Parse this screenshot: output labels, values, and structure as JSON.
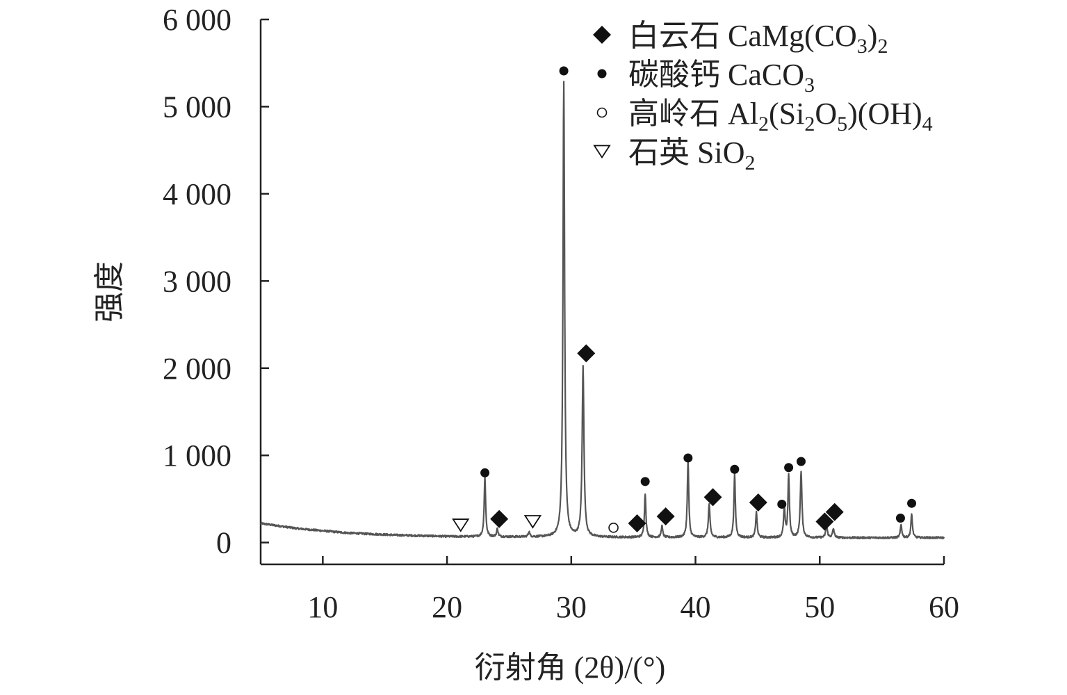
{
  "chart_data": {
    "type": "line",
    "xlabel": "衍射角 (2θ)/(°)",
    "ylabel": "强度",
    "xlim": [
      5,
      60
    ],
    "ylim": [
      -250,
      6000
    ],
    "x_ticks": [
      10,
      20,
      30,
      40,
      50,
      60
    ],
    "y_ticks": [
      0,
      1000,
      2000,
      3000,
      4000,
      5000,
      6000
    ],
    "x_tick_labels": [
      "10",
      "20",
      "30",
      "40",
      "50",
      "60"
    ],
    "y_tick_labels": [
      "0",
      "1 000",
      "2 000",
      "3 000",
      "4 000",
      "5 000",
      "6 000"
    ],
    "grid": false,
    "legend_position": "top-right",
    "line_color": "#555555",
    "background": {
      "points": [
        [
          5,
          220
        ],
        [
          8,
          160
        ],
        [
          12,
          110
        ],
        [
          16,
          85
        ],
        [
          20,
          70
        ],
        [
          25,
          65
        ],
        [
          30,
          62
        ],
        [
          40,
          58
        ],
        [
          50,
          55
        ],
        [
          55,
          55
        ],
        [
          60,
          55
        ]
      ]
    },
    "peaks": [
      {
        "x": 23.05,
        "height": 690,
        "width": 0.09
      },
      {
        "x": 24.05,
        "height": 90,
        "width": 0.09
      },
      {
        "x": 26.6,
        "height": 60,
        "width": 0.09
      },
      {
        "x": 29.4,
        "height": 5230,
        "width": 0.1
      },
      {
        "x": 30.95,
        "height": 1950,
        "width": 0.11
      },
      {
        "x": 35.95,
        "height": 500,
        "width": 0.09
      },
      {
        "x": 37.3,
        "height": 130,
        "width": 0.09
      },
      {
        "x": 39.4,
        "height": 870,
        "width": 0.09
      },
      {
        "x": 41.1,
        "height": 380,
        "width": 0.1
      },
      {
        "x": 43.15,
        "height": 720,
        "width": 0.09
      },
      {
        "x": 44.9,
        "height": 290,
        "width": 0.09
      },
      {
        "x": 47.15,
        "height": 340,
        "width": 0.09
      },
      {
        "x": 47.5,
        "height": 720,
        "width": 0.09
      },
      {
        "x": 48.5,
        "height": 760,
        "width": 0.1
      },
      {
        "x": 50.55,
        "height": 140,
        "width": 0.1
      },
      {
        "x": 51.1,
        "height": 100,
        "width": 0.1
      },
      {
        "x": 56.55,
        "height": 150,
        "width": 0.09
      },
      {
        "x": 57.4,
        "height": 270,
        "width": 0.09
      }
    ],
    "markers": [
      {
        "type": "diamond",
        "x": 31.2,
        "y": 2170
      },
      {
        "type": "diamond",
        "x": 24.2,
        "y": 270
      },
      {
        "type": "diamond",
        "x": 35.3,
        "y": 220
      },
      {
        "type": "diamond",
        "x": 37.6,
        "y": 300
      },
      {
        "type": "diamond",
        "x": 41.4,
        "y": 520
      },
      {
        "type": "diamond",
        "x": 45.05,
        "y": 460
      },
      {
        "type": "diamond",
        "x": 50.4,
        "y": 240
      },
      {
        "type": "diamond",
        "x": 51.2,
        "y": 350
      },
      {
        "type": "dot",
        "x": 29.4,
        "y": 5410
      },
      {
        "type": "dot",
        "x": 23.05,
        "y": 800
      },
      {
        "type": "dot",
        "x": 35.95,
        "y": 700
      },
      {
        "type": "dot",
        "x": 39.4,
        "y": 970
      },
      {
        "type": "dot",
        "x": 43.15,
        "y": 840
      },
      {
        "type": "dot",
        "x": 46.95,
        "y": 440
      },
      {
        "type": "dot",
        "x": 47.5,
        "y": 860
      },
      {
        "type": "dot",
        "x": 48.5,
        "y": 930
      },
      {
        "type": "dot",
        "x": 56.5,
        "y": 280
      },
      {
        "type": "dot",
        "x": 57.4,
        "y": 450
      },
      {
        "type": "circle",
        "x": 33.4,
        "y": 170
      },
      {
        "type": "triangle",
        "x": 21.1,
        "y": 200
      },
      {
        "type": "triangle",
        "x": 26.9,
        "y": 240
      }
    ],
    "legend": [
      {
        "symbol": "diamond",
        "name": "白云石 ",
        "formula": [
          {
            "t": "CaMg(CO",
            "sub": false
          },
          {
            "t": "3",
            "sub": true
          },
          {
            "t": ")",
            "sub": false
          },
          {
            "t": "2",
            "sub": true
          }
        ]
      },
      {
        "symbol": "dot",
        "name": "碳酸钙 ",
        "formula": [
          {
            "t": "CaCO",
            "sub": false
          },
          {
            "t": "3",
            "sub": true
          }
        ]
      },
      {
        "symbol": "circle",
        "name": "高岭石 ",
        "formula": [
          {
            "t": "Al",
            "sub": false
          },
          {
            "t": "2",
            "sub": true
          },
          {
            "t": "(Si",
            "sub": false
          },
          {
            "t": "2",
            "sub": true
          },
          {
            "t": "O",
            "sub": false
          },
          {
            "t": "5",
            "sub": true
          },
          {
            "t": ")(OH)",
            "sub": false
          },
          {
            "t": "4",
            "sub": true
          }
        ]
      },
      {
        "symbol": "triangle",
        "name": "石英 ",
        "formula": [
          {
            "t": "SiO",
            "sub": false
          },
          {
            "t": "2",
            "sub": true
          }
        ]
      }
    ]
  }
}
